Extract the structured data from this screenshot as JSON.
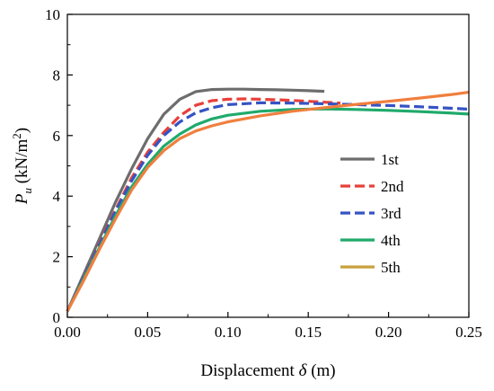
{
  "chart_data": {
    "type": "line",
    "xlabel": "Displacement δ (m)",
    "xlabel_parts": {
      "main": "Displacement ",
      "symbol": "δ",
      "unit": " (m)"
    },
    "ylabel": "Pu (kN/m2)",
    "ylabel_parts": {
      "symbol": "P",
      "subscript": "u",
      "unit_open": " (kN/m",
      "unit_sup": "2",
      "unit_close": ")"
    },
    "xlim": [
      0,
      0.25
    ],
    "ylim": [
      0,
      10
    ],
    "x_ticks": [
      0.0,
      0.05,
      0.1,
      0.15,
      0.2,
      0.25
    ],
    "x_tick_labels": [
      "0.00",
      "0.05",
      "0.10",
      "0.15",
      "0.20",
      "0.25"
    ],
    "y_ticks": [
      0,
      2,
      4,
      6,
      8,
      10
    ],
    "y_tick_labels": [
      "0",
      "2",
      "4",
      "6",
      "8",
      "10"
    ],
    "grid": false,
    "legend_position": "right",
    "series": [
      {
        "name": "1st",
        "color": "#6d6d6d",
        "dash": "solid",
        "x": [
          0,
          0.01,
          0.02,
          0.03,
          0.04,
          0.05,
          0.06,
          0.07,
          0.08,
          0.09,
          0.1,
          0.11,
          0.12,
          0.13,
          0.14,
          0.15,
          0.16
        ],
        "y": [
          0.2,
          1.4,
          2.6,
          3.8,
          4.9,
          5.9,
          6.7,
          7.2,
          7.45,
          7.52,
          7.53,
          7.53,
          7.52,
          7.51,
          7.5,
          7.48,
          7.46
        ]
      },
      {
        "name": "2nd",
        "color": "#e8403a",
        "dash": "dashed",
        "x": [
          0,
          0.01,
          0.02,
          0.03,
          0.04,
          0.05,
          0.06,
          0.07,
          0.08,
          0.09,
          0.1,
          0.11,
          0.12,
          0.13,
          0.14,
          0.15,
          0.16,
          0.17
        ],
        "y": [
          0.2,
          1.3,
          2.45,
          3.55,
          4.6,
          5.45,
          6.1,
          6.65,
          7.0,
          7.15,
          7.2,
          7.21,
          7.2,
          7.18,
          7.16,
          7.13,
          7.1,
          7.07
        ]
      },
      {
        "name": "3rd",
        "color": "#3553c4",
        "dash": "dashed",
        "x": [
          0,
          0.01,
          0.02,
          0.03,
          0.04,
          0.05,
          0.06,
          0.07,
          0.08,
          0.09,
          0.1,
          0.12,
          0.14,
          0.16,
          0.18,
          0.2,
          0.22,
          0.24,
          0.25
        ],
        "y": [
          0.2,
          1.3,
          2.4,
          3.5,
          4.5,
          5.35,
          6.0,
          6.45,
          6.75,
          6.92,
          7.02,
          7.08,
          7.07,
          7.05,
          7.02,
          6.99,
          6.95,
          6.9,
          6.87
        ]
      },
      {
        "name": "4th",
        "color": "#1faa6b",
        "dash": "solid",
        "x": [
          0,
          0.01,
          0.02,
          0.03,
          0.04,
          0.05,
          0.06,
          0.07,
          0.08,
          0.09,
          0.1,
          0.12,
          0.14,
          0.16,
          0.18,
          0.2,
          0.22,
          0.24,
          0.25
        ],
        "y": [
          0.2,
          1.25,
          2.3,
          3.35,
          4.3,
          5.05,
          5.65,
          6.05,
          6.35,
          6.55,
          6.67,
          6.8,
          6.86,
          6.88,
          6.86,
          6.83,
          6.79,
          6.74,
          6.71
        ]
      },
      {
        "name": "5th",
        "color": "#f07f3e",
        "dash": "solid",
        "legend_color": "#c9a13c",
        "x": [
          0,
          0.01,
          0.02,
          0.03,
          0.04,
          0.05,
          0.06,
          0.07,
          0.08,
          0.09,
          0.1,
          0.12,
          0.14,
          0.16,
          0.18,
          0.2,
          0.22,
          0.24,
          0.25
        ],
        "y": [
          0.2,
          1.2,
          2.25,
          3.25,
          4.2,
          4.95,
          5.5,
          5.9,
          6.15,
          6.32,
          6.45,
          6.65,
          6.8,
          6.92,
          7.03,
          7.13,
          7.24,
          7.36,
          7.43
        ]
      }
    ]
  }
}
